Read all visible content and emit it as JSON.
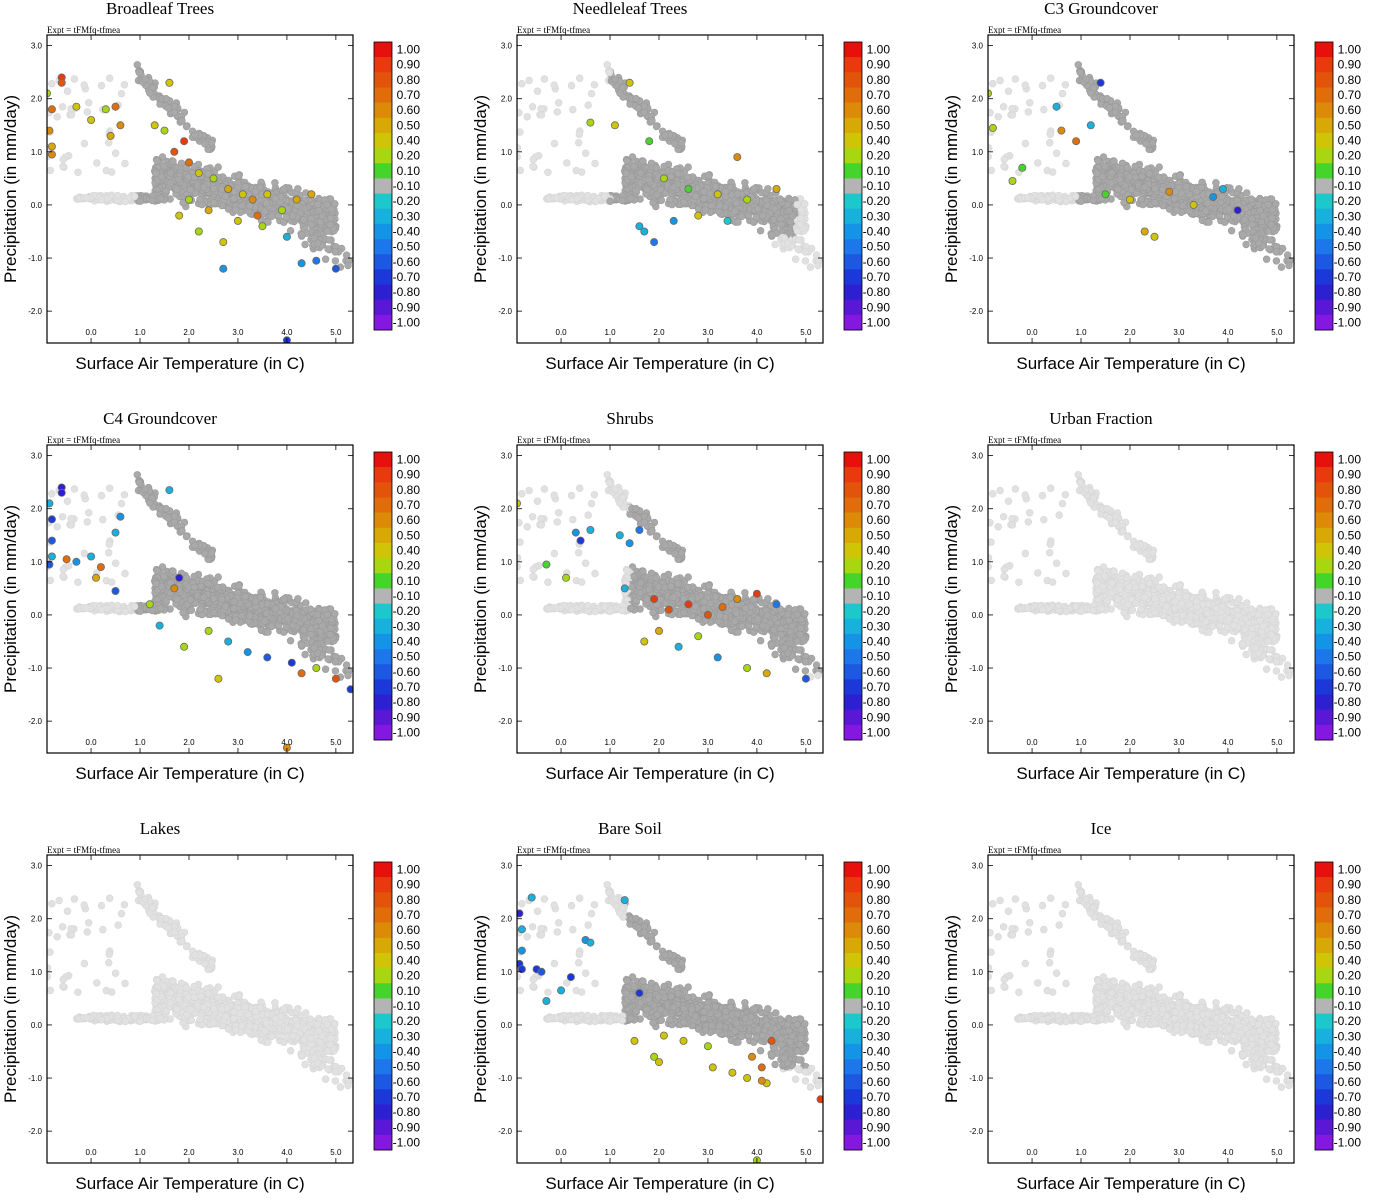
{
  "figure": {
    "expt_label": "Expt = tFMfq-tfmea"
  },
  "colorbar": {
    "labels": [
      "1.00",
      "0.90",
      "0.80",
      "0.70",
      "0.60",
      "0.50",
      "0.40",
      "0.20",
      "0.10",
      "-0.10",
      "-0.20",
      "-0.30",
      "-0.40",
      "-0.50",
      "-0.60",
      "-0.70",
      "-0.80",
      "-0.90",
      "-1.00"
    ],
    "colors": [
      "#e8100c",
      "#e83a0c",
      "#e2540a",
      "#e06c0a",
      "#dc8a08",
      "#d8a806",
      "#cfc406",
      "#a8d610",
      "#45d42a",
      "#b4b4b4",
      "#1cc8cc",
      "#18b0dc",
      "#1494e6",
      "#1c78ea",
      "#1c58e2",
      "#1c38d8",
      "#2c20d0",
      "#5a18d6",
      "#8418e0"
    ]
  },
  "chart_data": [
    {
      "type": "scatter",
      "title": "Broadleaf Trees",
      "xlabel": "Surface Air Temperature (in C)",
      "ylabel": "Precipitation (in mm/day)",
      "xticks": [
        "0.0",
        "1.0",
        "2.0",
        "3.0",
        "4.0",
        "5.0"
      ],
      "yticks": [
        "3.0",
        "2.0",
        "1.0",
        "0.0",
        "-1.0",
        "-2.0"
      ],
      "xlim": [
        -0.9,
        5.35
      ],
      "ylim": [
        -2.6,
        3.2
      ],
      "pattern": "broadleaf",
      "colored_points": [
        [
          -0.9,
          2.1,
          0.2
        ],
        [
          -0.6,
          2.4,
          0.9
        ],
        [
          -0.6,
          2.3,
          0.8
        ],
        [
          -0.8,
          1.8,
          0.7
        ],
        [
          -0.85,
          1.4,
          0.6
        ],
        [
          -0.8,
          1.1,
          0.5
        ],
        [
          -0.8,
          0.95,
          0.6
        ],
        [
          -0.3,
          1.85,
          0.4
        ],
        [
          0.0,
          1.6,
          0.3
        ],
        [
          0.5,
          1.85,
          0.7
        ],
        [
          0.3,
          1.8,
          0.2
        ],
        [
          0.4,
          1.3,
          0.5
        ],
        [
          0.6,
          1.5,
          0.6
        ],
        [
          1.3,
          1.5,
          0.3
        ],
        [
          1.5,
          1.4,
          0.2
        ],
        [
          1.6,
          2.3,
          0.4
        ],
        [
          1.7,
          1.0,
          0.8
        ],
        [
          1.9,
          1.2,
          0.9
        ],
        [
          2.0,
          0.8,
          0.7
        ],
        [
          2.2,
          0.6,
          0.3
        ],
        [
          2.5,
          0.5,
          0.2
        ],
        [
          2.8,
          0.3,
          0.5
        ],
        [
          3.1,
          0.2,
          0.3
        ],
        [
          3.3,
          0.1,
          0.6
        ],
        [
          3.6,
          0.2,
          0.4
        ],
        [
          3.9,
          -0.1,
          0.2
        ],
        [
          4.2,
          0.1,
          0.5
        ],
        [
          1.8,
          -0.2,
          0.3
        ],
        [
          2.2,
          -0.5,
          0.2
        ],
        [
          2.7,
          -0.7,
          0.4
        ],
        [
          3.0,
          -0.3,
          0.3
        ],
        [
          3.5,
          -0.4,
          0.2
        ],
        [
          4.0,
          -0.6,
          -0.3
        ],
        [
          4.3,
          -1.1,
          -0.4
        ],
        [
          4.6,
          -1.05,
          -0.5
        ],
        [
          5.0,
          -1.2,
          -0.6
        ],
        [
          2.7,
          -1.2,
          -0.4
        ],
        [
          4.0,
          -2.55,
          -0.7
        ],
        [
          2.0,
          0.1,
          0.2
        ],
        [
          2.4,
          -0.1,
          0.5
        ],
        [
          3.4,
          -0.2,
          0.7
        ],
        [
          4.5,
          0.2,
          0.5
        ]
      ]
    },
    {
      "type": "scatter",
      "title": "Needleleaf Trees",
      "xlabel": "Surface Air Temperature (in C)",
      "ylabel": "Precipitation (in mm/day)",
      "xticks": [
        "0.0",
        "1.0",
        "2.0",
        "3.0",
        "4.0",
        "5.0"
      ],
      "yticks": [
        "3.0",
        "2.0",
        "1.0",
        "0.0",
        "-1.0",
        "-2.0"
      ],
      "xlim": [
        -0.9,
        5.35
      ],
      "ylim": [
        -2.6,
        3.2
      ],
      "pattern": "needleleaf",
      "colored_points": [
        [
          1.4,
          2.3,
          0.4
        ],
        [
          0.6,
          1.55,
          0.2
        ],
        [
          1.1,
          1.5,
          0.3
        ],
        [
          1.8,
          1.2,
          0.1
        ],
        [
          3.6,
          0.9,
          0.6
        ],
        [
          2.1,
          0.5,
          0.2
        ],
        [
          2.6,
          0.3,
          0.1
        ],
        [
          3.2,
          0.2,
          0.4
        ],
        [
          3.8,
          0.1,
          0.2
        ],
        [
          1.6,
          -0.4,
          -0.3
        ],
        [
          1.9,
          -0.7,
          -0.5
        ],
        [
          2.3,
          -0.3,
          -0.4
        ],
        [
          1.7,
          -0.5,
          -0.3
        ],
        [
          3.4,
          -0.3,
          -0.2
        ],
        [
          4.4,
          0.3,
          0.5
        ],
        [
          2.8,
          -0.2,
          0.3
        ]
      ]
    },
    {
      "type": "scatter",
      "title": "C3 Groundcover",
      "xlabel": "Surface Air Temperature (in C)",
      "ylabel": "Precipitation (in mm/day)",
      "xticks": [
        "0.0",
        "1.0",
        "2.0",
        "3.0",
        "4.0",
        "5.0"
      ],
      "yticks": [
        "3.0",
        "2.0",
        "1.0",
        "0.0",
        "-1.0",
        "-2.0"
      ],
      "xlim": [
        -0.9,
        5.35
      ],
      "ylim": [
        -2.6,
        3.2
      ],
      "pattern": "c3",
      "colored_points": [
        [
          -0.9,
          2.1,
          0.2
        ],
        [
          -0.8,
          1.45,
          0.2
        ],
        [
          -0.4,
          0.45,
          0.2
        ],
        [
          -0.2,
          0.7,
          0.1
        ],
        [
          0.5,
          1.85,
          -0.3
        ],
        [
          0.6,
          1.4,
          0.6
        ],
        [
          1.4,
          2.3,
          -0.7
        ],
        [
          1.5,
          0.2,
          0.1
        ],
        [
          2.0,
          0.1,
          0.4
        ],
        [
          2.3,
          -0.5,
          0.5
        ],
        [
          2.5,
          -0.6,
          0.3
        ],
        [
          3.3,
          0.0,
          0.3
        ],
        [
          3.9,
          0.3,
          -0.3
        ],
        [
          4.2,
          -0.1,
          -0.8
        ],
        [
          3.7,
          0.15,
          -0.4
        ],
        [
          2.8,
          0.25,
          0.6
        ],
        [
          1.2,
          1.5,
          -0.3
        ],
        [
          0.9,
          1.2,
          0.7
        ]
      ]
    },
    {
      "type": "scatter",
      "title": "C4 Groundcover",
      "xlabel": "Surface Air Temperature (in C)",
      "ylabel": "Precipitation (in mm/day)",
      "xticks": [
        "0.0",
        "1.0",
        "2.0",
        "3.0",
        "4.0",
        "5.0"
      ],
      "yticks": [
        "3.0",
        "2.0",
        "1.0",
        "0.0",
        "-1.0",
        "-2.0"
      ],
      "xlim": [
        -0.9,
        5.35
      ],
      "ylim": [
        -2.6,
        3.2
      ],
      "pattern": "c4",
      "colored_points": [
        [
          -0.6,
          2.4,
          -0.8
        ],
        [
          -0.6,
          2.3,
          -0.8
        ],
        [
          -0.85,
          2.1,
          -0.3
        ],
        [
          -0.8,
          1.8,
          -0.7
        ],
        [
          -0.8,
          1.4,
          -0.6
        ],
        [
          -0.8,
          1.1,
          -0.3
        ],
        [
          -0.85,
          0.95,
          -0.6
        ],
        [
          -0.5,
          1.05,
          0.7
        ],
        [
          -0.3,
          1.0,
          -0.4
        ],
        [
          0.0,
          1.1,
          -0.3
        ],
        [
          0.1,
          0.7,
          0.5
        ],
        [
          0.2,
          0.9,
          0.7
        ],
        [
          0.5,
          0.45,
          -0.6
        ],
        [
          0.5,
          1.55,
          -0.3
        ],
        [
          0.6,
          1.85,
          -0.4
        ],
        [
          1.2,
          0.2,
          0.2
        ],
        [
          1.4,
          -0.2,
          -0.3
        ],
        [
          1.7,
          0.5,
          0.6
        ],
        [
          1.9,
          -0.6,
          0.2
        ],
        [
          2.4,
          -0.3,
          0.2
        ],
        [
          2.8,
          -0.5,
          -0.3
        ],
        [
          3.2,
          -0.7,
          -0.4
        ],
        [
          3.6,
          -0.8,
          -0.6
        ],
        [
          4.1,
          -0.9,
          -0.7
        ],
        [
          4.3,
          -1.1,
          0.7
        ],
        [
          4.6,
          -1.0,
          0.2
        ],
        [
          5.0,
          -1.2,
          0.8
        ],
        [
          5.3,
          -1.4,
          -0.7
        ],
        [
          4.0,
          -2.5,
          0.6
        ],
        [
          2.6,
          -1.2,
          0.4
        ],
        [
          1.6,
          2.35,
          -0.3
        ],
        [
          1.8,
          0.7,
          -0.8
        ]
      ]
    },
    {
      "type": "scatter",
      "title": "Shrubs",
      "xlabel": "Surface Air Temperature (in C)",
      "ylabel": "Precipitation (in mm/day)",
      "xticks": [
        "0.0",
        "1.0",
        "2.0",
        "3.0",
        "4.0",
        "5.0"
      ],
      "yticks": [
        "3.0",
        "2.0",
        "1.0",
        "0.0",
        "-1.0",
        "-2.0"
      ],
      "xlim": [
        -0.9,
        5.35
      ],
      "ylim": [
        -2.6,
        3.2
      ],
      "pattern": "shrubs",
      "colored_points": [
        [
          -0.9,
          2.1,
          0.4
        ],
        [
          -0.3,
          0.95,
          0.1
        ],
        [
          0.1,
          0.7,
          0.2
        ],
        [
          0.3,
          1.55,
          -0.4
        ],
        [
          0.4,
          1.4,
          -0.7
        ],
        [
          0.6,
          1.6,
          -0.3
        ],
        [
          1.2,
          1.5,
          -0.3
        ],
        [
          1.4,
          1.35,
          -0.4
        ],
        [
          1.6,
          1.6,
          -0.5
        ],
        [
          1.9,
          0.3,
          0.9
        ],
        [
          2.2,
          0.1,
          0.8
        ],
        [
          2.6,
          0.2,
          0.9
        ],
        [
          3.0,
          0.0,
          0.8
        ],
        [
          3.3,
          0.15,
          0.7
        ],
        [
          3.6,
          0.3,
          0.6
        ],
        [
          4.0,
          0.4,
          0.9
        ],
        [
          4.4,
          0.2,
          -0.5
        ],
        [
          2.0,
          -0.3,
          0.5
        ],
        [
          2.4,
          -0.6,
          -0.3
        ],
        [
          3.2,
          -0.8,
          -0.4
        ],
        [
          3.8,
          -1.0,
          0.2
        ],
        [
          4.2,
          -1.1,
          0.5
        ],
        [
          5.0,
          -1.2,
          -0.6
        ],
        [
          1.7,
          -0.5,
          0.3
        ],
        [
          2.8,
          -0.4,
          0.2
        ],
        [
          1.3,
          0.5,
          -0.3
        ]
      ]
    },
    {
      "type": "scatter",
      "title": "Urban Fraction",
      "xlabel": "Surface Air Temperature (in C)",
      "ylabel": "Precipitation (in mm/day)",
      "xticks": [
        "0.0",
        "1.0",
        "2.0",
        "3.0",
        "4.0",
        "5.0"
      ],
      "yticks": [
        "3.0",
        "2.0",
        "1.0",
        "0.0",
        "-1.0",
        "-2.0"
      ],
      "xlim": [
        -0.9,
        5.35
      ],
      "ylim": [
        -2.6,
        3.2
      ],
      "pattern": "none",
      "colored_points": []
    },
    {
      "type": "scatter",
      "title": "Lakes",
      "xlabel": "Surface Air Temperature (in C)",
      "ylabel": "Precipitation (in mm/day)",
      "xticks": [
        "0.0",
        "1.0",
        "2.0",
        "3.0",
        "4.0",
        "5.0"
      ],
      "yticks": [
        "3.0",
        "2.0",
        "1.0",
        "0.0",
        "-1.0",
        "-2.0"
      ],
      "xlim": [
        -0.9,
        5.35
      ],
      "ylim": [
        -2.6,
        3.2
      ],
      "pattern": "none",
      "colored_points": []
    },
    {
      "type": "scatter",
      "title": "Bare Soil",
      "xlabel": "Surface Air Temperature (in C)",
      "ylabel": "Precipitation (in mm/day)",
      "xticks": [
        "0.0",
        "1.0",
        "2.0",
        "3.0",
        "4.0",
        "5.0"
      ],
      "yticks": [
        "3.0",
        "2.0",
        "1.0",
        "0.0",
        "-1.0",
        "-2.0"
      ],
      "xlim": [
        -0.9,
        5.35
      ],
      "ylim": [
        -2.6,
        3.2
      ],
      "pattern": "baresoil",
      "colored_points": [
        [
          -0.85,
          2.1,
          -0.8
        ],
        [
          -0.6,
          2.4,
          -0.3
        ],
        [
          -0.8,
          1.8,
          -0.3
        ],
        [
          -0.8,
          1.4,
          -0.4
        ],
        [
          -0.85,
          1.15,
          -0.7
        ],
        [
          -0.8,
          1.05,
          -0.7
        ],
        [
          -0.5,
          1.05,
          -0.7
        ],
        [
          -0.4,
          1.0,
          -0.6
        ],
        [
          -0.3,
          0.45,
          -0.3
        ],
        [
          0.0,
          0.65,
          -0.3
        ],
        [
          0.2,
          0.9,
          -0.7
        ],
        [
          0.5,
          1.6,
          -0.4
        ],
        [
          0.6,
          1.55,
          -0.3
        ],
        [
          1.3,
          2.35,
          -0.3
        ],
        [
          1.6,
          0.6,
          -0.7
        ],
        [
          1.5,
          -0.3,
          0.3
        ],
        [
          1.9,
          -0.6,
          0.2
        ],
        [
          2.1,
          -0.2,
          0.4
        ],
        [
          2.5,
          -0.3,
          0.3
        ],
        [
          3.0,
          -0.4,
          0.2
        ],
        [
          3.1,
          -0.8,
          0.4
        ],
        [
          3.5,
          -0.9,
          0.3
        ],
        [
          3.9,
          -0.6,
          0.6
        ],
        [
          4.1,
          -0.8,
          0.7
        ],
        [
          4.2,
          -1.1,
          0.3
        ],
        [
          4.1,
          -1.05,
          0.6
        ],
        [
          5.3,
          -1.4,
          0.9
        ],
        [
          4.0,
          -2.55,
          0.2
        ],
        [
          3.8,
          -1.0,
          0.4
        ],
        [
          2.0,
          -0.7,
          0.3
        ],
        [
          4.3,
          -0.3,
          0.8
        ]
      ]
    },
    {
      "type": "scatter",
      "title": "Ice",
      "xlabel": "Surface Air Temperature (in C)",
      "ylabel": "Precipitation (in mm/day)",
      "xticks": [
        "0.0",
        "1.0",
        "2.0",
        "3.0",
        "4.0",
        "5.0"
      ],
      "yticks": [
        "3.0",
        "2.0",
        "1.0",
        "0.0",
        "-1.0",
        "-2.0"
      ],
      "xlim": [
        -0.9,
        5.35
      ],
      "ylim": [
        -2.6,
        3.2
      ],
      "pattern": "none",
      "colored_points": []
    }
  ]
}
